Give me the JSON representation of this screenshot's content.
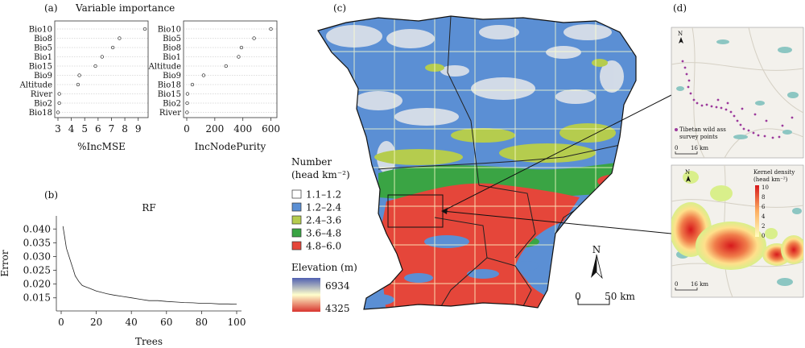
{
  "panel_labels": {
    "a": "(a)",
    "b": "(b)",
    "c": "(c)",
    "d": "(d)"
  },
  "panel_a": {
    "title": "Variable importance",
    "left": {
      "xlabel": "%IncMSE",
      "xticks": [
        "3",
        "4",
        "5",
        "6",
        "7",
        "8",
        "9"
      ],
      "xlim": [
        3,
        9.5
      ],
      "variables": [
        "Bio10",
        "Bio8",
        "Bio5",
        "Bio1",
        "Bio15",
        "Bio9",
        "Altitude",
        "River",
        "Bio2",
        "Bio18"
      ],
      "values": [
        9.5,
        7.6,
        7.1,
        6.3,
        5.8,
        4.6,
        4.5,
        3.1,
        3.1,
        3.0
      ]
    },
    "right": {
      "xlabel": "IncNodePurity",
      "xticks": [
        "0",
        "200",
        "400",
        "600"
      ],
      "xlim": [
        0,
        620
      ],
      "variables": [
        "Bio10",
        "Bio5",
        "Bio8",
        "Bio1",
        "Altitude",
        "Bio9",
        "Bio18",
        "Bio15",
        "Bio2",
        "River"
      ],
      "values": [
        600,
        480,
        390,
        370,
        280,
        120,
        40,
        5,
        3,
        2
      ]
    }
  },
  "chart_data": {
    "type": "line",
    "title": "RF",
    "xlabel": "Trees",
    "ylabel": "Error",
    "xlim": [
      0,
      100
    ],
    "ylim": [
      0.012,
      0.043
    ],
    "xticks": [
      "0",
      "20",
      "40",
      "60",
      "80",
      "100"
    ],
    "yticks": [
      "0.015",
      "0.020",
      "0.025",
      "0.030",
      "0.035",
      "0.040"
    ],
    "x": [
      1,
      2,
      3,
      4,
      5,
      6,
      7,
      8,
      9,
      10,
      12,
      14,
      16,
      18,
      20,
      23,
      26,
      30,
      35,
      40,
      45,
      50,
      55,
      60,
      65,
      70,
      75,
      80,
      85,
      90,
      95,
      100
    ],
    "y": [
      0.041,
      0.037,
      0.033,
      0.031,
      0.029,
      0.027,
      0.025,
      0.023,
      0.022,
      0.021,
      0.0195,
      0.019,
      0.0185,
      0.018,
      0.0175,
      0.017,
      0.0165,
      0.016,
      0.0155,
      0.015,
      0.0145,
      0.014,
      0.014,
      0.0137,
      0.0135,
      0.0133,
      0.0132,
      0.013,
      0.013,
      0.0128,
      0.0128,
      0.0127
    ]
  },
  "map_legend": {
    "number_title_line1": "Number",
    "number_title_line2": "(head km⁻²)",
    "classes": [
      {
        "label": "1.1–1.2",
        "color": "#ffffff"
      },
      {
        "label": "1.2–2.4",
        "color": "#5b8fd4"
      },
      {
        "label": "2.4–3.6",
        "color": "#b5cc4e"
      },
      {
        "label": "3.6–4.8",
        "color": "#3aa444"
      },
      {
        "label": "4.8–6.0",
        "color": "#e5463a"
      }
    ],
    "elevation_title": "Elevation (m)",
    "elevation_max": "6934",
    "elevation_min": "4325",
    "elevation_colors": [
      "#4f5fb0",
      "#ffffcc",
      "#d8342e"
    ]
  },
  "north_label": "N",
  "scalebar": {
    "start": "0",
    "end": "50 km"
  },
  "inset_top": {
    "legend": "Tibetan wild ass survey points",
    "legend_line1": "Tibetan wild ass",
    "legend_line2": "survey points",
    "scale_start": "0",
    "scale_end": "16 km",
    "north": "N"
  },
  "inset_bottom": {
    "legend_title_line1": "Kernel density",
    "legend_title_line2": "(head km⁻²)",
    "ticks": [
      "10",
      "8",
      "6",
      "4",
      "2",
      "0"
    ],
    "scale_start": "0",
    "scale_end": "16 km",
    "north": "N"
  }
}
